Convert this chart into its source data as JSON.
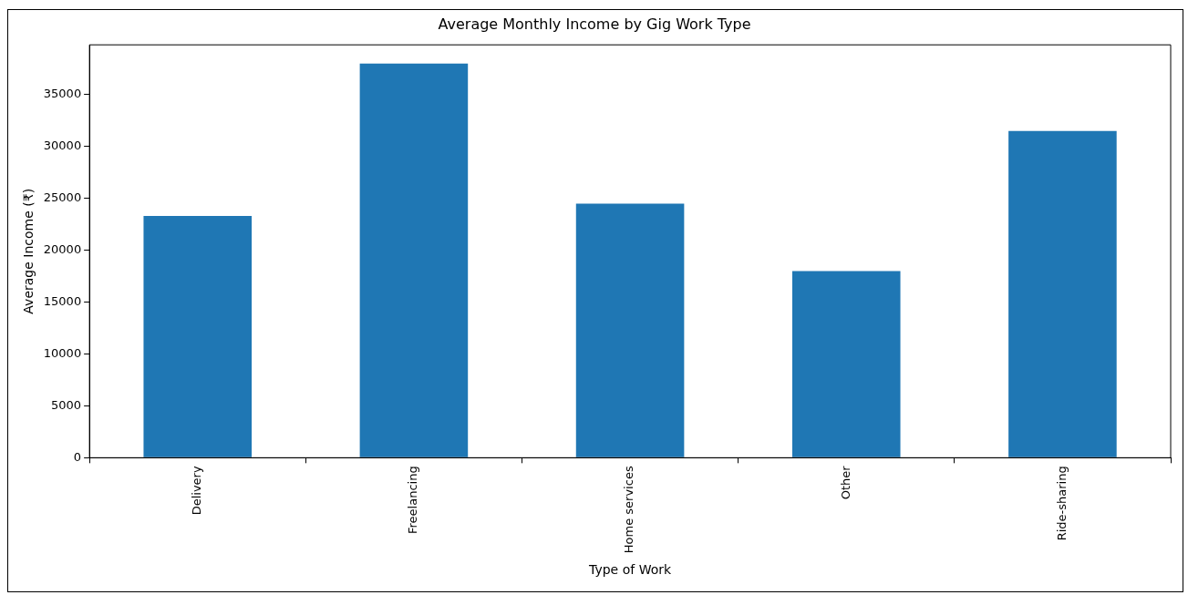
{
  "chart_data": {
    "type": "bar",
    "title": "Average Monthly Income by Gig Work Type",
    "xlabel": "Type of Work",
    "ylabel": "Average Income (₹)",
    "categories": [
      "Delivery",
      "Freelancing",
      "Home services",
      "Other",
      "Ride-sharing"
    ],
    "values": [
      23300,
      38000,
      24500,
      18000,
      31500
    ],
    "color": "#1f77b4",
    "ylim": [
      0,
      39800
    ],
    "yticks": [
      0,
      5000,
      10000,
      15000,
      20000,
      25000,
      30000,
      35000
    ],
    "grid": false,
    "legend": false
  }
}
